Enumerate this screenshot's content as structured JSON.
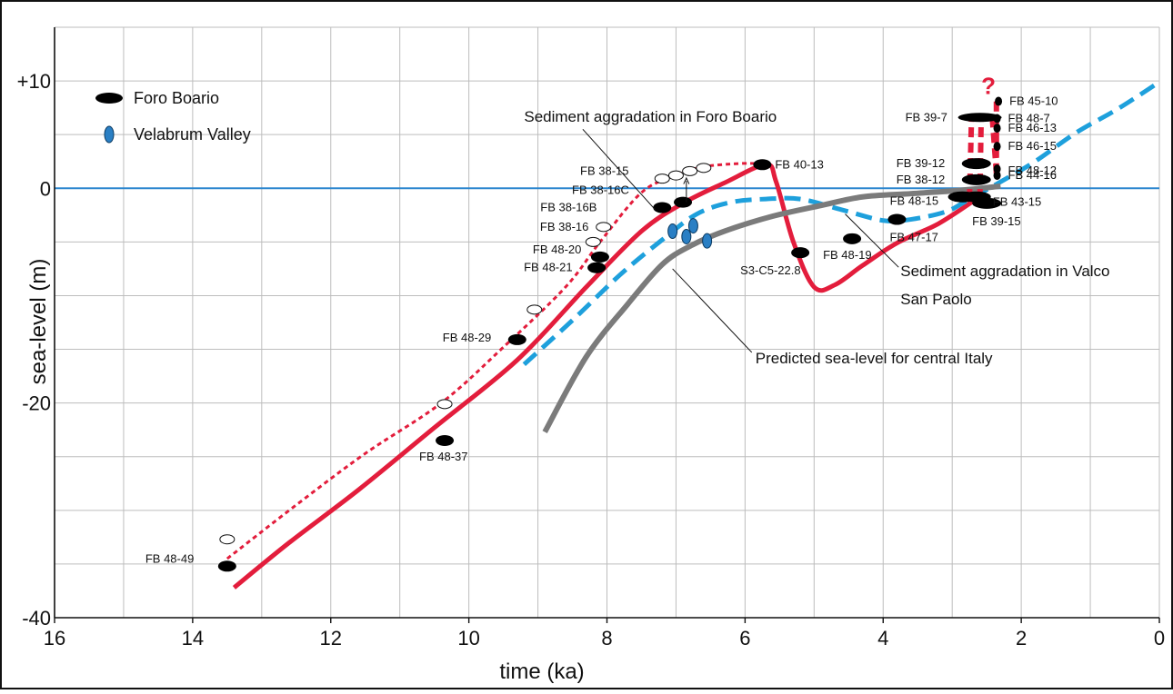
{
  "chart_data": {
    "type": "line",
    "title": "",
    "xlabel": "time (ka)",
    "ylabel": "sea-level (m)",
    "xlim": [
      16,
      0
    ],
    "ylim": [
      -40,
      15
    ],
    "x_ticks": [
      "16",
      "14",
      "12",
      "10",
      "8",
      "6",
      "4",
      "2",
      "0"
    ],
    "y_ticks": [
      "+10",
      "0",
      "-20",
      "-40"
    ],
    "grid": true,
    "legend_position": "top-left",
    "legend": [
      {
        "name": "Foro Boario",
        "marker": "black-ellipse",
        "color": "#000000"
      },
      {
        "name": "Velabrum Valley",
        "marker": "blue-ellipse",
        "color": "#2a7fc4"
      }
    ],
    "annotations": [
      {
        "text": "Sediment aggradation in Foro Boario",
        "x": 9.2,
        "y": 6.2,
        "pointer_to": [
          7.3,
          -2.0
        ]
      },
      {
        "text": "Sediment aggradation in Valco",
        "x": 3.75,
        "y": -8.2,
        "pointer_to": [
          4.55,
          -2.4
        ]
      },
      {
        "text": "San Paolo",
        "x": 3.75,
        "y": -10.8
      },
      {
        "text": "Predicted sea-level for central Italy",
        "x": 5.85,
        "y": -16.3,
        "pointer_to": [
          7.05,
          -7.5
        ]
      },
      {
        "text": "?",
        "x": 2.58,
        "y": 8.8
      }
    ],
    "series": [
      {
        "name": "",
        "style": "solid",
        "color": "#e31d3c",
        "points": [
          [
            13.4,
            -37.2
          ],
          [
            12.6,
            -33.0
          ],
          [
            11.6,
            -28.1
          ],
          [
            10.5,
            -22.3
          ],
          [
            9.3,
            -16.0
          ],
          [
            8.3,
            -9.2
          ],
          [
            7.5,
            -4.0
          ],
          [
            6.9,
            -1.4
          ],
          [
            6.3,
            0.5
          ],
          [
            5.7,
            2.2
          ],
          [
            5.55,
            0.6
          ],
          [
            5.3,
            -5.0
          ],
          [
            5.0,
            -9.2
          ],
          [
            4.7,
            -9.0
          ],
          [
            4.3,
            -7.2
          ],
          [
            3.8,
            -5.1
          ],
          [
            3.2,
            -3.3
          ],
          [
            2.65,
            -1.0
          ]
        ]
      },
      {
        "name": "",
        "style": "dotted",
        "color": "#e31d3c",
        "points": [
          [
            13.5,
            -34.5
          ],
          [
            12.5,
            -29.5
          ],
          [
            11.5,
            -24.7
          ],
          [
            10.4,
            -20.0
          ],
          [
            9.5,
            -14.8
          ],
          [
            8.6,
            -9.2
          ],
          [
            8.1,
            -5.0
          ],
          [
            7.5,
            -0.4
          ],
          [
            7.0,
            1.2
          ],
          [
            6.6,
            2.0
          ],
          [
            6.1,
            2.3
          ],
          [
            5.8,
            2.3
          ]
        ]
      },
      {
        "name": "",
        "style": "dashed",
        "color": "#1ea0dc",
        "points": [
          [
            9.2,
            -16.4
          ],
          [
            8.5,
            -12.3
          ],
          [
            7.8,
            -8.0
          ],
          [
            7.2,
            -4.8
          ],
          [
            6.7,
            -2.4
          ],
          [
            6.2,
            -1.3
          ],
          [
            5.7,
            -1.0
          ],
          [
            5.2,
            -1.0
          ],
          [
            4.6,
            -2.0
          ],
          [
            4.0,
            -3.0
          ],
          [
            3.6,
            -2.9
          ],
          [
            3.1,
            -2.2
          ],
          [
            2.8,
            -1.2
          ],
          [
            2.3,
            0.6
          ],
          [
            1.8,
            2.5
          ],
          [
            1.2,
            5.2
          ],
          [
            0.6,
            7.4
          ],
          [
            0.0,
            9.9
          ]
        ]
      },
      {
        "name": "",
        "style": "solid",
        "color": "#7b7b7b",
        "points": [
          [
            8.9,
            -22.7
          ],
          [
            8.3,
            -15.7
          ],
          [
            7.7,
            -10.8
          ],
          [
            7.2,
            -7.1
          ],
          [
            6.8,
            -5.4
          ],
          [
            6.3,
            -4.0
          ],
          [
            5.6,
            -2.6
          ],
          [
            4.9,
            -1.6
          ],
          [
            4.3,
            -0.8
          ],
          [
            3.6,
            -0.5
          ],
          [
            2.9,
            -0.2
          ],
          [
            2.3,
            0.2
          ]
        ]
      },
      {
        "name": "",
        "style": "dashed-thick",
        "color": "#e31d3c",
        "segments": [
          [
            [
              2.75,
              -1.0
            ],
            [
              2.72,
              6.6
            ]
          ],
          [
            [
              2.6,
              -1.0
            ],
            [
              2.58,
              6.6
            ]
          ],
          [
            [
              2.72,
              6.6
            ],
            [
              2.42,
              6.6
            ]
          ],
          [
            [
              2.42,
              6.6
            ],
            [
              2.36,
              1.4
            ]
          ],
          [
            [
              2.36,
              1.4
            ],
            [
              2.36,
              8.2
            ]
          ]
        ]
      }
    ],
    "samples": [
      {
        "label": "FB 48-49",
        "type": "foro",
        "x": 13.5,
        "y": -35.2
      },
      {
        "label": "FB 48-37",
        "type": "foro",
        "x": 10.35,
        "y": -23.5
      },
      {
        "label": "FB 48-29",
        "type": "foro",
        "x": 9.3,
        "y": -14.1
      },
      {
        "label": "FB 48-21",
        "type": "foro",
        "x": 8.15,
        "y": -7.4
      },
      {
        "label": "FB 48-20",
        "type": "foro",
        "x": 8.1,
        "y": -6.4
      },
      {
        "label": "FB 38-16",
        "type": "foro-open",
        "x": 8.1,
        "y": -3.8
      },
      {
        "label": "FB 38-16B",
        "type": "foro",
        "x": 7.2,
        "y": -1.8
      },
      {
        "label": "FB 38-16C",
        "type": "foro",
        "x": 6.9,
        "y": -1.3
      },
      {
        "label": "FB 38-15",
        "type": "foro-open",
        "x": 7.15,
        "y": 0.9
      },
      {
        "label": "FB 40-13",
        "type": "foro",
        "x": 5.75,
        "y": 2.2
      },
      {
        "label": "S3-C5-22.8",
        "type": "foro",
        "x": 5.2,
        "y": -6.0
      },
      {
        "label": "FB 48-19",
        "type": "foro",
        "x": 4.45,
        "y": -4.7
      },
      {
        "label": "FB 47-17",
        "type": "foro",
        "x": 3.8,
        "y": -2.9
      },
      {
        "label": "FB 48-15",
        "type": "foro",
        "x": 2.85,
        "y": -0.8
      },
      {
        "label": "FB 39-15",
        "type": "foro",
        "x": 2.5,
        "y": -1.4
      },
      {
        "label": "FB 43-15",
        "type": "foro",
        "x": 2.65,
        "y": -0.8
      },
      {
        "label": "FB 38-12",
        "type": "foro",
        "x": 2.65,
        "y": 0.8
      },
      {
        "label": "FB 39-12",
        "type": "foro",
        "x": 2.65,
        "y": 2.3
      },
      {
        "label": "FB 39-7",
        "type": "foro",
        "x": 2.6,
        "y": 6.6
      },
      {
        "label": "FB 44-16",
        "type": "foro",
        "x": 2.35,
        "y": 1.2
      },
      {
        "label": "FB 48-12",
        "type": "foro",
        "x": 2.35,
        "y": 1.8
      },
      {
        "label": "FB 46-15",
        "type": "foro",
        "x": 2.35,
        "y": 3.9
      },
      {
        "label": "FB 46-13",
        "type": "foro",
        "x": 2.35,
        "y": 5.6
      },
      {
        "label": "FB 48-7",
        "type": "foro",
        "x": 2.35,
        "y": 6.5
      },
      {
        "label": "FB 45-10",
        "type": "foro",
        "x": 2.33,
        "y": 8.1
      }
    ],
    "open_markers": [
      {
        "x": 13.5,
        "y": -32.7
      },
      {
        "x": 10.35,
        "y": -20.1
      },
      {
        "x": 9.05,
        "y": -11.3
      },
      {
        "x": 8.2,
        "y": -5.0
      },
      {
        "x": 8.05,
        "y": -3.6
      },
      {
        "x": 7.0,
        "y": 1.2
      },
      {
        "x": 6.8,
        "y": 1.6
      },
      {
        "x": 6.6,
        "y": 1.9
      },
      {
        "x": 7.2,
        "y": 0.9
      }
    ],
    "velabrum_markers": [
      {
        "x": 7.05,
        "y": -4.0
      },
      {
        "x": 6.85,
        "y": -4.5
      },
      {
        "x": 6.75,
        "y": -3.5
      },
      {
        "x": 6.55,
        "y": -4.9
      }
    ]
  }
}
